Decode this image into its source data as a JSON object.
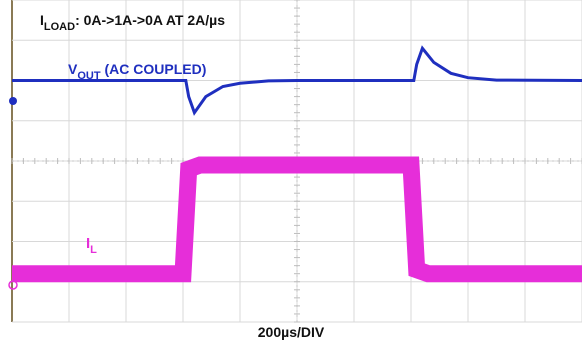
{
  "chart_data": {
    "type": "line",
    "title": "",
    "xlabel": "200µs/DIV",
    "ylabel": "",
    "x_divisions": 10,
    "y_divisions": 8,
    "grid": true,
    "annotations": {
      "load_prefix": "I",
      "load_sub": "LOAD",
      "load_text": ": 0A->1A->0A AT 2A/µs",
      "vout_prefix": "V",
      "vout_sub": "OUT",
      "vout_text": " (AC COUPLED)",
      "il_prefix": "I",
      "il_sub": "L"
    },
    "series": [
      {
        "channel": "VOUT",
        "color": "#1f2fbf",
        "x_div": [
          0,
          3.05,
          3.1,
          3.2,
          3.4,
          3.7,
          4.0,
          4.5,
          5.0,
          7.05,
          7.1,
          7.2,
          7.4,
          7.7,
          8.0,
          8.5,
          10
        ],
        "y_div": [
          6.0,
          6.0,
          5.6,
          5.2,
          5.6,
          5.85,
          5.93,
          5.99,
          6.0,
          6.0,
          6.4,
          6.8,
          6.45,
          6.18,
          6.07,
          6.01,
          6.0
        ]
      },
      {
        "channel": "IL",
        "color": "#e62ed9",
        "x_div": [
          0,
          3.0,
          3.1,
          3.3,
          7.0,
          7.1,
          7.3,
          10
        ],
        "y_div": [
          1.2,
          1.2,
          3.8,
          3.9,
          3.9,
          1.3,
          1.2,
          1.2
        ]
      }
    ]
  }
}
